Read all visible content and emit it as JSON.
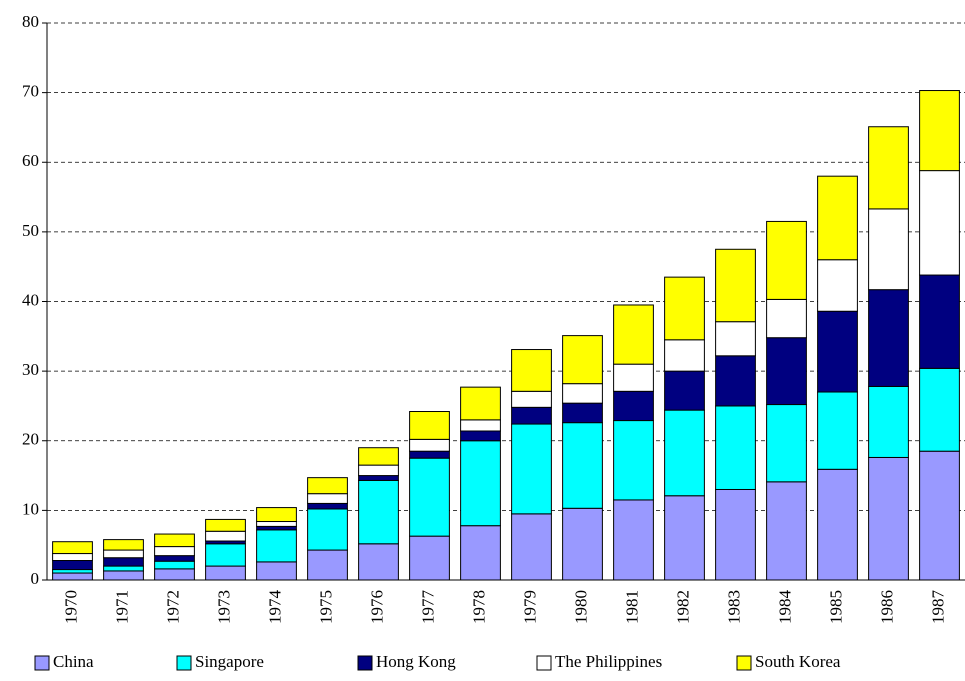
{
  "chart_data": {
    "type": "stacked_bar",
    "categories": [
      "1970",
      "1971",
      "1972",
      "1973",
      "1974",
      "1975",
      "1976",
      "1977",
      "1978",
      "1979",
      "1980",
      "1981",
      "1982",
      "1983",
      "1984",
      "1985",
      "1986",
      "1987"
    ],
    "series": [
      {
        "name": "China",
        "color": "#9999ff",
        "values": [
          1.0,
          1.3,
          1.6,
          2.0,
          2.6,
          4.3,
          5.2,
          6.3,
          7.8,
          9.5,
          10.3,
          11.5,
          12.1,
          13.0,
          14.1,
          15.9,
          17.6,
          18.5
        ]
      },
      {
        "name": "Singapore",
        "color": "#00ffff",
        "values": [
          0.5,
          0.7,
          1.1,
          3.2,
          4.6,
          5.9,
          9.1,
          11.2,
          12.2,
          12.9,
          12.3,
          11.4,
          12.3,
          12.0,
          11.1,
          11.1,
          10.2,
          11.9
        ]
      },
      {
        "name": "Hong Kong",
        "color": "#000080",
        "values": [
          1.3,
          1.2,
          0.8,
          0.4,
          0.5,
          0.8,
          0.7,
          1.0,
          1.4,
          2.4,
          2.8,
          4.2,
          5.6,
          7.2,
          9.6,
          11.6,
          13.9,
          13.4
        ]
      },
      {
        "name": "The Philippines",
        "color": "#ffffff",
        "values": [
          1.0,
          1.1,
          1.3,
          1.4,
          0.7,
          1.4,
          1.5,
          1.7,
          1.6,
          2.3,
          2.8,
          3.9,
          4.5,
          4.9,
          5.5,
          7.4,
          11.6,
          15.0
        ]
      },
      {
        "name": "South Korea",
        "color": "#ffff00",
        "values": [
          1.7,
          1.5,
          1.8,
          1.7,
          2.0,
          2.3,
          2.5,
          4.0,
          4.7,
          6.0,
          6.9,
          8.5,
          9.0,
          10.4,
          11.2,
          12.0,
          11.8,
          11.5
        ]
      }
    ],
    "ylim": [
      0,
      80
    ],
    "yticks": [
      0,
      10,
      20,
      30,
      40,
      50,
      60,
      70,
      80
    ],
    "grid": true,
    "legend": "bottom"
  }
}
